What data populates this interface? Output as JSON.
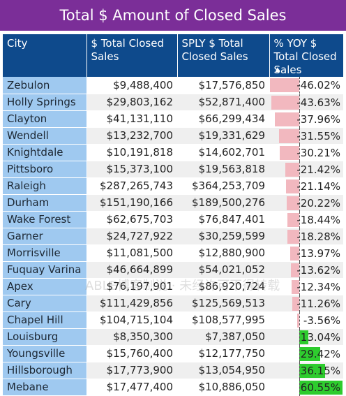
{
  "title": "Total $ Amount of Closed Sales",
  "columns": {
    "city": "City",
    "total": "$ Total Closed Sales",
    "sply": "SPLY $ Total Closed Sales",
    "yoy": "% YOY $ Total Closed Sales"
  },
  "sort_indicator": "▲",
  "watermark": "ABLE博客制说 · 未经许可不得转载",
  "colors": {
    "header": "#0e4a8c",
    "title_bar": "#7b2e98",
    "city_cell": "#9fc9f0",
    "negative_bar": "#f2b8bf",
    "positive_bar": "#2ecc2e"
  },
  "rows": [
    {
      "city": "Zebulon",
      "total": "$9,488,400",
      "sply": "$17,576,850",
      "yoy": "-46.02%",
      "yoy_value": -46.02
    },
    {
      "city": "Holly Springs",
      "total": "$29,803,162",
      "sply": "$52,871,400",
      "yoy": "-43.63%",
      "yoy_value": -43.63
    },
    {
      "city": "Clayton",
      "total": "$41,131,110",
      "sply": "$66,299,434",
      "yoy": "-37.96%",
      "yoy_value": -37.96
    },
    {
      "city": "Wendell",
      "total": "$13,232,700",
      "sply": "$19,331,629",
      "yoy": "-31.55%",
      "yoy_value": -31.55
    },
    {
      "city": "Knightdale",
      "total": "$10,191,818",
      "sply": "$14,602,701",
      "yoy": "-30.21%",
      "yoy_value": -30.21
    },
    {
      "city": "Pittsboro",
      "total": "$15,373,100",
      "sply": "$19,563,818",
      "yoy": "-21.42%",
      "yoy_value": -21.42
    },
    {
      "city": "Raleigh",
      "total": "$287,265,743",
      "sply": "$364,253,709",
      "yoy": "-21.14%",
      "yoy_value": -21.14
    },
    {
      "city": "Durham",
      "total": "$151,190,166",
      "sply": "$189,500,276",
      "yoy": "-20.22%",
      "yoy_value": -20.22
    },
    {
      "city": "Wake Forest",
      "total": "$62,675,703",
      "sply": "$76,847,401",
      "yoy": "-18.44%",
      "yoy_value": -18.44
    },
    {
      "city": "Garner",
      "total": "$24,727,922",
      "sply": "$30,259,599",
      "yoy": "-18.28%",
      "yoy_value": -18.28
    },
    {
      "city": "Morrisville",
      "total": "$11,081,500",
      "sply": "$12,880,900",
      "yoy": "-13.97%",
      "yoy_value": -13.97
    },
    {
      "city": "Fuquay Varina",
      "total": "$46,664,899",
      "sply": "$54,021,052",
      "yoy": "-13.62%",
      "yoy_value": -13.62
    },
    {
      "city": "Apex",
      "total": "$76,197,901",
      "sply": "$86,920,724",
      "yoy": "-12.34%",
      "yoy_value": -12.34
    },
    {
      "city": "Cary",
      "total": "$111,429,856",
      "sply": "$125,569,513",
      "yoy": "-11.26%",
      "yoy_value": -11.26
    },
    {
      "city": "Chapel Hill",
      "total": "$104,715,104",
      "sply": "$108,577,995",
      "yoy": "-3.56%",
      "yoy_value": -3.56
    },
    {
      "city": "Louisburg",
      "total": "$8,350,300",
      "sply": "$7,387,050",
      "yoy": "13.04%",
      "yoy_value": 13.04
    },
    {
      "city": "Youngsville",
      "total": "$15,760,400",
      "sply": "$12,177,750",
      "yoy": "29.42%",
      "yoy_value": 29.42
    },
    {
      "city": "Hillsborough",
      "total": "$17,773,900",
      "sply": "$13,054,950",
      "yoy": "36.15%",
      "yoy_value": 36.15
    },
    {
      "city": "Mebane",
      "total": "$17,477,400",
      "sply": "$10,886,050",
      "yoy": "60.55%",
      "yoy_value": 60.55
    }
  ]
}
